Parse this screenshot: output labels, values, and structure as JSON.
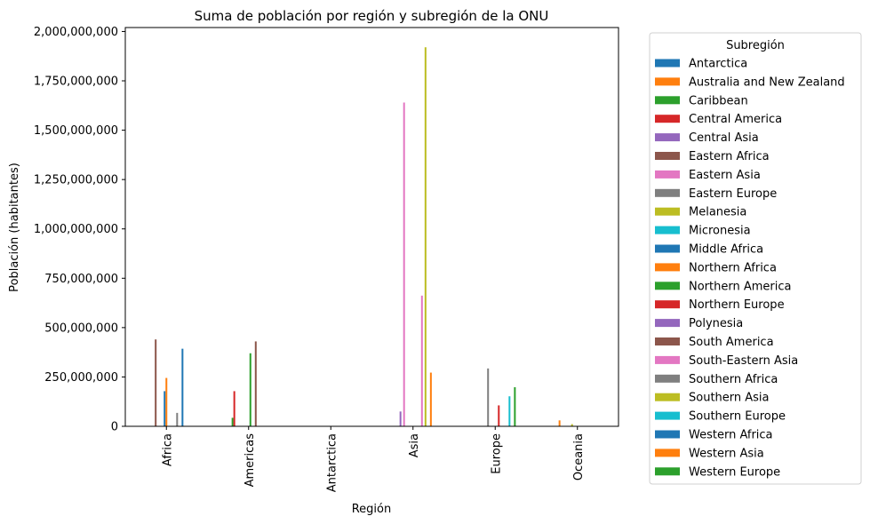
{
  "chart_data": {
    "type": "bar",
    "title": "Suma de población por región y subregión de la ONU",
    "xlabel": "Región",
    "ylabel": "Población (habitantes)",
    "ylim": [
      0,
      2020000000
    ],
    "yticks": [
      0,
      250000000,
      500000000,
      750000000,
      1000000000,
      1250000000,
      1500000000,
      1750000000,
      2000000000
    ],
    "ytick_labels": [
      "0",
      "250,000,000",
      "500,000,000",
      "750,000,000",
      "1,000,000,000",
      "1,250,000,000",
      "1,500,000,000",
      "1,750,000,000",
      "2,000,000,000"
    ],
    "categories": [
      "Africa",
      "Americas",
      "Antarctica",
      "Asia",
      "Europe",
      "Oceania"
    ],
    "legend_title": "Subregión",
    "legend_position": "outside right",
    "grid": false,
    "series": [
      {
        "name": "Antarctica",
        "color": "#1f77b4",
        "values": [
          0,
          0,
          0,
          0,
          0,
          0
        ]
      },
      {
        "name": "Australia and New Zealand",
        "color": "#ff7f0e",
        "values": [
          0,
          0,
          0,
          0,
          0,
          30000000
        ]
      },
      {
        "name": "Caribbean",
        "color": "#2ca02c",
        "values": [
          0,
          43000000,
          0,
          0,
          0,
          0
        ]
      },
      {
        "name": "Central America",
        "color": "#d62728",
        "values": [
          0,
          178000000,
          0,
          0,
          0,
          0
        ]
      },
      {
        "name": "Central Asia",
        "color": "#9467bd",
        "values": [
          0,
          0,
          0,
          75000000,
          0,
          0
        ]
      },
      {
        "name": "Eastern Africa",
        "color": "#8c564b",
        "values": [
          440000000,
          0,
          0,
          0,
          0,
          0
        ]
      },
      {
        "name": "Eastern Asia",
        "color": "#e377c2",
        "values": [
          0,
          0,
          0,
          1640000000,
          0,
          0
        ]
      },
      {
        "name": "Eastern Europe",
        "color": "#7f7f7f",
        "values": [
          0,
          0,
          0,
          0,
          293000000,
          0
        ]
      },
      {
        "name": "Melanesia",
        "color": "#bcbd22",
        "values": [
          0,
          0,
          0,
          0,
          0,
          11000000
        ]
      },
      {
        "name": "Micronesia",
        "color": "#17becf",
        "values": [
          0,
          0,
          0,
          0,
          0,
          500000
        ]
      },
      {
        "name": "Middle Africa",
        "color": "#1f77b4",
        "values": [
          178000000,
          0,
          0,
          0,
          0,
          0
        ]
      },
      {
        "name": "Northern Africa",
        "color": "#ff7f0e",
        "values": [
          245000000,
          0,
          0,
          0,
          0,
          0
        ]
      },
      {
        "name": "Northern America",
        "color": "#2ca02c",
        "values": [
          0,
          370000000,
          0,
          0,
          0,
          0
        ]
      },
      {
        "name": "Northern Europe",
        "color": "#d62728",
        "values": [
          0,
          0,
          0,
          0,
          106000000,
          0
        ]
      },
      {
        "name": "Polynesia",
        "color": "#9467bd",
        "values": [
          0,
          0,
          0,
          0,
          0,
          700000
        ]
      },
      {
        "name": "South America",
        "color": "#8c564b",
        "values": [
          0,
          430000000,
          0,
          0,
          0,
          0
        ]
      },
      {
        "name": "South-Eastern Asia",
        "color": "#e377c2",
        "values": [
          0,
          0,
          0,
          662000000,
          0,
          0
        ]
      },
      {
        "name": "Southern Africa",
        "color": "#7f7f7f",
        "values": [
          68000000,
          0,
          0,
          0,
          0,
          0
        ]
      },
      {
        "name": "Southern Asia",
        "color": "#bcbd22",
        "values": [
          0,
          0,
          0,
          1920000000,
          0,
          0
        ]
      },
      {
        "name": "Southern Europe",
        "color": "#17becf",
        "values": [
          0,
          0,
          0,
          0,
          152000000,
          0
        ]
      },
      {
        "name": "Western Africa",
        "color": "#1f77b4",
        "values": [
          393000000,
          0,
          0,
          0,
          0,
          0
        ]
      },
      {
        "name": "Western Asia",
        "color": "#ff7f0e",
        "values": [
          0,
          0,
          0,
          272000000,
          0,
          0
        ]
      },
      {
        "name": "Western Europe",
        "color": "#2ca02c",
        "values": [
          0,
          0,
          0,
          0,
          198000000,
          0
        ]
      }
    ]
  }
}
